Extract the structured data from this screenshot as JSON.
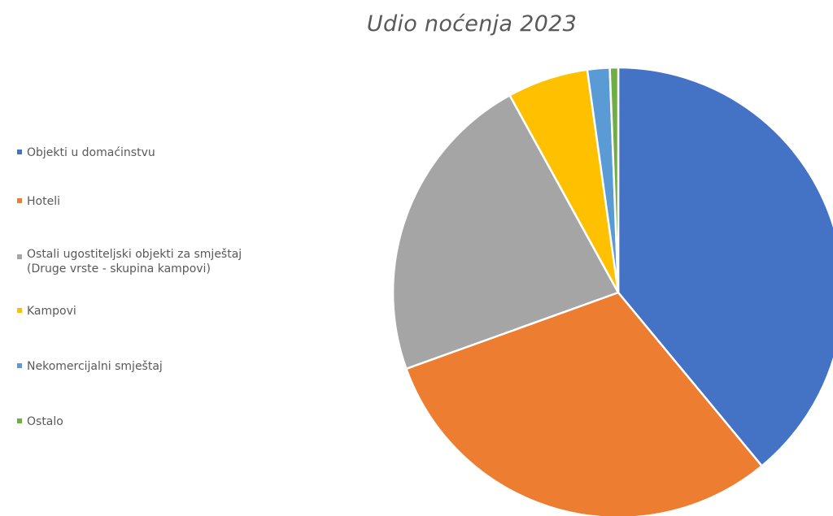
{
  "chart_data": {
    "type": "pie",
    "title": "Udio noćenja  2023",
    "legend_position": "left",
    "slices": [
      {
        "label": "Objekti u domaćinstvu",
        "value": 39.0,
        "color": "#4472C4"
      },
      {
        "label": "Hoteli",
        "value": 30.5,
        "color": "#ED7D31"
      },
      {
        "label": "Ostali ugostiteljski objekti za smještaj (Druge vrste - skupina kampovi)",
        "label_lines": [
          "Ostali ugostiteljski objekti za smještaj",
          "(Druge vrste - skupina kampovi)"
        ],
        "value": 22.5,
        "color": "#A5A5A5"
      },
      {
        "label": "Kampovi",
        "value": 5.8,
        "color": "#FFC000"
      },
      {
        "label": "Nekomercijalni smještaj",
        "value": 1.6,
        "color": "#5B9BD5"
      },
      {
        "label": "Ostalo",
        "value": 0.6,
        "color": "#70AD47"
      }
    ]
  }
}
